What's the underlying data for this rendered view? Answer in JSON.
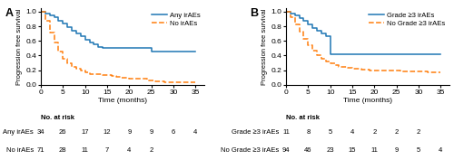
{
  "chart_data": [
    {
      "type": "step",
      "title": "A",
      "xlabel": "Time (months)",
      "ylabel": "Progression free survival",
      "xlim": [
        0,
        37
      ],
      "ylim": [
        0.0,
        1.05
      ],
      "xticks": [
        0,
        5,
        10,
        15,
        20,
        25,
        30,
        35
      ],
      "yticks": [
        {
          "value": 0.0,
          "label": "0.0"
        },
        {
          "value": 0.2,
          "label": "0.2"
        },
        {
          "value": 0.4,
          "label": "0.4"
        },
        {
          "value": 0.6,
          "label": "0.6"
        },
        {
          "value": 0.8,
          "label": "0.8"
        },
        {
          "value": 1.0,
          "label": "1.0"
        }
      ],
      "legend": "upper right",
      "at_risk_label": "No. at risk",
      "at_risk_times": [
        0,
        5,
        10,
        15,
        20,
        25,
        30,
        35
      ],
      "series": [
        {
          "name": "Any irAEs",
          "line_style": "solid",
          "x": [
            0,
            1,
            2,
            3,
            4,
            5,
            6,
            7,
            8,
            9,
            10,
            11,
            12,
            13,
            14,
            15,
            16,
            17,
            18,
            19,
            20,
            21,
            25,
            26,
            35
          ],
          "values": [
            1.0,
            0.97,
            0.95,
            0.92,
            0.88,
            0.84,
            0.79,
            0.74,
            0.7,
            0.66,
            0.62,
            0.58,
            0.55,
            0.52,
            0.5,
            0.5,
            0.5,
            0.5,
            0.5,
            0.5,
            0.5,
            0.5,
            0.46,
            0.46,
            0.46
          ],
          "at_risk": [
            34,
            26,
            17,
            12,
            9,
            9,
            6,
            4
          ]
        },
        {
          "name": "No irAEs",
          "line_style": "dashed",
          "x": [
            0,
            1,
            2,
            3,
            4,
            5,
            6,
            7,
            8,
            9,
            10,
            11,
            12,
            13,
            14,
            15,
            16,
            17,
            18,
            19,
            20,
            22,
            24,
            26,
            28,
            30,
            35
          ],
          "values": [
            1.0,
            0.87,
            0.72,
            0.58,
            0.46,
            0.36,
            0.3,
            0.25,
            0.22,
            0.19,
            0.17,
            0.15,
            0.14,
            0.14,
            0.13,
            0.13,
            0.12,
            0.11,
            0.1,
            0.1,
            0.09,
            0.08,
            0.06,
            0.05,
            0.04,
            0.03,
            0.03
          ],
          "at_risk": [
            71,
            28,
            11,
            7,
            4,
            2,
            null,
            null
          ]
        }
      ]
    },
    {
      "type": "step",
      "title": "B",
      "xlabel": "Time (months)",
      "ylabel": "Progression free survival",
      "xlim": [
        0,
        37
      ],
      "ylim": [
        0.0,
        1.05
      ],
      "xticks": [
        0,
        5,
        10,
        15,
        20,
        25,
        30,
        35
      ],
      "yticks": [
        {
          "value": 0.0,
          "label": "0.0"
        },
        {
          "value": 0.2,
          "label": "0.2"
        },
        {
          "value": 0.4,
          "label": "0.4"
        },
        {
          "value": 0.6,
          "label": "0.6"
        },
        {
          "value": 0.8,
          "label": "0.8"
        },
        {
          "value": 1.0,
          "label": "1.0"
        }
      ],
      "legend": "upper right",
      "at_risk_label": "No. at risk",
      "at_risk_times": [
        0,
        5,
        10,
        15,
        20,
        25,
        30,
        35
      ],
      "series": [
        {
          "name": "Grade ≥3 irAEs",
          "line_style": "solid",
          "x": [
            0,
            1,
            2,
            3,
            4,
            5,
            6,
            7,
            8,
            9,
            10,
            11,
            12,
            13,
            14,
            15,
            20,
            25,
            30,
            35
          ],
          "values": [
            1.0,
            0.98,
            0.95,
            0.91,
            0.87,
            0.82,
            0.78,
            0.74,
            0.7,
            0.66,
            0.42,
            0.42,
            0.42,
            0.42,
            0.42,
            0.42,
            0.42,
            0.42,
            0.42,
            0.42
          ],
          "at_risk": [
            11,
            8,
            5,
            4,
            2,
            2,
            2,
            null
          ]
        },
        {
          "name": "No Grade ≥3 irAEs",
          "line_style": "dashed",
          "x": [
            0,
            1,
            2,
            3,
            4,
            5,
            6,
            7,
            8,
            9,
            10,
            11,
            12,
            13,
            14,
            15,
            16,
            17,
            18,
            19,
            20,
            22,
            24,
            26,
            28,
            30,
            32,
            35
          ],
          "values": [
            1.0,
            0.92,
            0.83,
            0.73,
            0.63,
            0.54,
            0.47,
            0.41,
            0.36,
            0.32,
            0.29,
            0.27,
            0.25,
            0.24,
            0.23,
            0.22,
            0.22,
            0.21,
            0.21,
            0.2,
            0.2,
            0.19,
            0.19,
            0.18,
            0.18,
            0.18,
            0.17,
            0.17
          ],
          "at_risk": [
            94,
            46,
            23,
            15,
            11,
            9,
            5,
            4
          ]
        }
      ]
    }
  ]
}
